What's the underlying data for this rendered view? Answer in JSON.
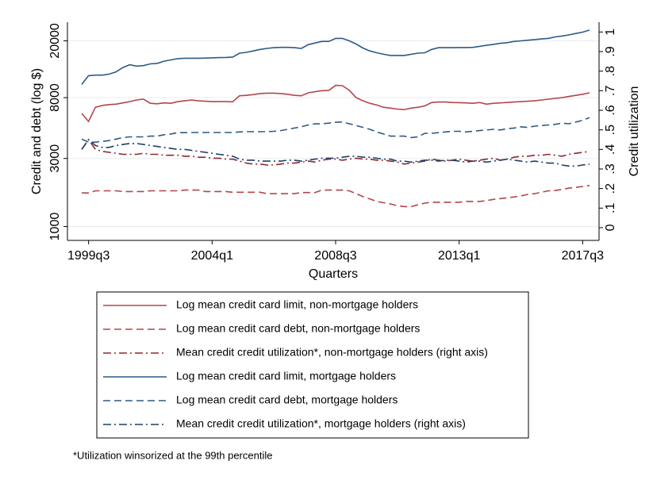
{
  "chart_data": {
    "type": "line",
    "x_label": "Quarters",
    "y_label": "Credit and debt (log $)",
    "y2_label": "Credit utilization",
    "footnote": "*Utilization winsorized at the 99th percentile",
    "log_y": true,
    "grid": true,
    "ylim": [
      800,
      27000
    ],
    "yticks": [
      1000,
      3000,
      8000,
      20000
    ],
    "y2lim": [
      -0.065,
      1.05
    ],
    "y2ticks": [
      0,
      {
        "value": 0.1,
        "label": ".1"
      },
      {
        "value": 0.2,
        "label": ".2"
      },
      {
        "value": 0.3,
        "label": ".3"
      },
      {
        "value": 0.4,
        "label": ".4"
      },
      {
        "value": 0.5,
        "label": ".5"
      },
      {
        "value": 0.6,
        "label": ".6"
      },
      {
        "value": 0.7,
        "label": ".7"
      },
      {
        "value": 0.8,
        "label": ".8"
      },
      {
        "value": 0.9,
        "label": ".9"
      },
      1
    ],
    "categories": [
      null,
      "1999q3",
      null,
      null,
      null,
      null,
      null,
      null,
      null,
      null,
      null,
      null,
      null,
      null,
      null,
      null,
      null,
      null,
      null,
      "2004q1",
      null,
      null,
      null,
      null,
      null,
      null,
      null,
      null,
      null,
      null,
      null,
      null,
      null,
      null,
      null,
      null,
      null,
      "2008q3",
      null,
      null,
      null,
      null,
      null,
      null,
      null,
      null,
      null,
      null,
      null,
      null,
      null,
      null,
      null,
      null,
      null,
      "2013q1",
      null,
      null,
      null,
      null,
      null,
      null,
      null,
      null,
      null,
      null,
      null,
      null,
      null,
      null,
      null,
      null,
      null,
      "2017q3",
      null
    ],
    "series": [
      {
        "name": "Log mean credit card limit, non-mortgage holders",
        "color": "#b5454a",
        "style": "solid",
        "axis": "y",
        "values": [
          6200,
          5450,
          6850,
          7050,
          7150,
          7200,
          7350,
          7500,
          7700,
          7800,
          7300,
          7250,
          7350,
          7300,
          7500,
          7600,
          7700,
          7600,
          7550,
          7500,
          7500,
          7500,
          7480,
          8250,
          8300,
          8400,
          8550,
          8600,
          8600,
          8550,
          8450,
          8300,
          8250,
          8650,
          8800,
          8950,
          9000,
          9750,
          9700,
          9000,
          8000,
          7600,
          7300,
          7100,
          6850,
          6750,
          6650,
          6600,
          6750,
          6850,
          7000,
          7400,
          7450,
          7450,
          7400,
          7380,
          7350,
          7300,
          7400,
          7200,
          7300,
          7350,
          7400,
          7450,
          7500,
          7550,
          7600,
          7700,
          7800,
          7900,
          8000,
          8150,
          8300,
          8450,
          8650
        ]
      },
      {
        "name": "Log mean credit card debt, non-mortgage holders",
        "color": "#b5454a",
        "style": "dashed",
        "axis": "y",
        "values": [
          1720,
          1720,
          1780,
          1780,
          1780,
          1780,
          1760,
          1760,
          1760,
          1760,
          1780,
          1780,
          1780,
          1780,
          1780,
          1800,
          1800,
          1800,
          1760,
          1760,
          1760,
          1760,
          1740,
          1740,
          1740,
          1740,
          1740,
          1700,
          1700,
          1700,
          1700,
          1700,
          1730,
          1730,
          1730,
          1800,
          1800,
          1800,
          1800,
          1780,
          1700,
          1620,
          1560,
          1500,
          1470,
          1440,
          1400,
          1380,
          1380,
          1420,
          1460,
          1480,
          1480,
          1480,
          1480,
          1480,
          1500,
          1500,
          1500,
          1520,
          1550,
          1570,
          1590,
          1610,
          1640,
          1680,
          1700,
          1740,
          1780,
          1790,
          1820,
          1860,
          1880,
          1910,
          1940
        ]
      },
      {
        "name": "Mean credit credit utilization*, non-mortgage holders (right axis)",
        "color": "#8c2a2e",
        "style": "dashdot",
        "axis": "y2",
        "values": [
          0.4,
          0.45,
          0.4,
          0.39,
          0.385,
          0.38,
          0.375,
          0.375,
          0.375,
          0.38,
          0.375,
          0.375,
          0.37,
          0.37,
          0.37,
          0.365,
          0.365,
          0.36,
          0.36,
          0.355,
          0.355,
          0.35,
          0.35,
          0.34,
          0.33,
          0.325,
          0.325,
          0.32,
          0.32,
          0.325,
          0.33,
          0.33,
          0.335,
          0.34,
          0.335,
          0.345,
          0.35,
          0.35,
          0.345,
          0.35,
          0.355,
          0.35,
          0.35,
          0.345,
          0.345,
          0.34,
          0.335,
          0.325,
          0.33,
          0.335,
          0.34,
          0.35,
          0.345,
          0.34,
          0.345,
          0.35,
          0.345,
          0.34,
          0.345,
          0.35,
          0.355,
          0.345,
          0.35,
          0.36,
          0.365,
          0.365,
          0.37,
          0.37,
          0.375,
          0.37,
          0.365,
          0.375,
          0.38,
          0.385,
          0.39
        ]
      },
      {
        "name": "Log mean credit card limit, mortgage holders",
        "color": "#2d5a86",
        "style": "solid",
        "axis": "y",
        "values": [
          9900,
          11400,
          11500,
          11500,
          11700,
          12100,
          13000,
          13600,
          13300,
          13400,
          13800,
          13900,
          14400,
          14700,
          15000,
          15100,
          15100,
          15100,
          15150,
          15200,
          15250,
          15300,
          15400,
          16400,
          16600,
          17000,
          17400,
          17700,
          17900,
          18000,
          18000,
          17900,
          17700,
          18800,
          19300,
          19800,
          19800,
          20800,
          20800,
          20000,
          19000,
          17800,
          17000,
          16500,
          16100,
          15800,
          15800,
          15800,
          16100,
          16400,
          16500,
          17400,
          17900,
          17900,
          17900,
          17950,
          17950,
          18000,
          18300,
          18600,
          18900,
          19200,
          19400,
          19800,
          20000,
          20200,
          20400,
          20600,
          20800,
          21300,
          21600,
          22000,
          22500,
          23000,
          23800
        ]
      },
      {
        "name": "Log mean credit card debt, mortgage holders",
        "color": "#2d5a86",
        "style": "dashed",
        "axis": "y",
        "values": [
          4100,
          3900,
          3900,
          3950,
          4000,
          4100,
          4200,
          4250,
          4250,
          4250,
          4300,
          4300,
          4400,
          4450,
          4550,
          4550,
          4560,
          4560,
          4560,
          4560,
          4560,
          4560,
          4560,
          4600,
          4620,
          4620,
          4620,
          4620,
          4650,
          4700,
          4800,
          4900,
          5000,
          5150,
          5250,
          5240,
          5300,
          5380,
          5400,
          5250,
          5100,
          4950,
          4800,
          4600,
          4450,
          4300,
          4300,
          4300,
          4200,
          4250,
          4500,
          4500,
          4550,
          4600,
          4650,
          4650,
          4600,
          4650,
          4700,
          4750,
          4800,
          4750,
          4850,
          4900,
          5000,
          4950,
          5050,
          5100,
          5150,
          5200,
          5300,
          5250,
          5400,
          5550,
          5800
        ]
      },
      {
        "name": "Mean credit credit utilization*, mortgage holders (right axis)",
        "color": "#1f3f66",
        "style": "dashdot",
        "axis": "y2",
        "values": [
          0.4,
          0.45,
          0.42,
          0.41,
          0.41,
          0.42,
          0.425,
          0.43,
          0.43,
          0.425,
          0.42,
          0.415,
          0.41,
          0.405,
          0.4,
          0.4,
          0.395,
          0.39,
          0.385,
          0.38,
          0.375,
          0.37,
          0.365,
          0.35,
          0.345,
          0.345,
          0.34,
          0.34,
          0.34,
          0.34,
          0.345,
          0.345,
          0.34,
          0.345,
          0.35,
          0.355,
          0.355,
          0.355,
          0.36,
          0.365,
          0.365,
          0.36,
          0.36,
          0.355,
          0.35,
          0.35,
          0.34,
          0.34,
          0.335,
          0.34,
          0.345,
          0.345,
          0.34,
          0.345,
          0.345,
          0.34,
          0.335,
          0.34,
          0.34,
          0.335,
          0.34,
          0.345,
          0.35,
          0.345,
          0.34,
          0.335,
          0.34,
          0.335,
          0.33,
          0.33,
          0.32,
          0.315,
          0.315,
          0.32,
          0.325
        ]
      }
    ]
  }
}
